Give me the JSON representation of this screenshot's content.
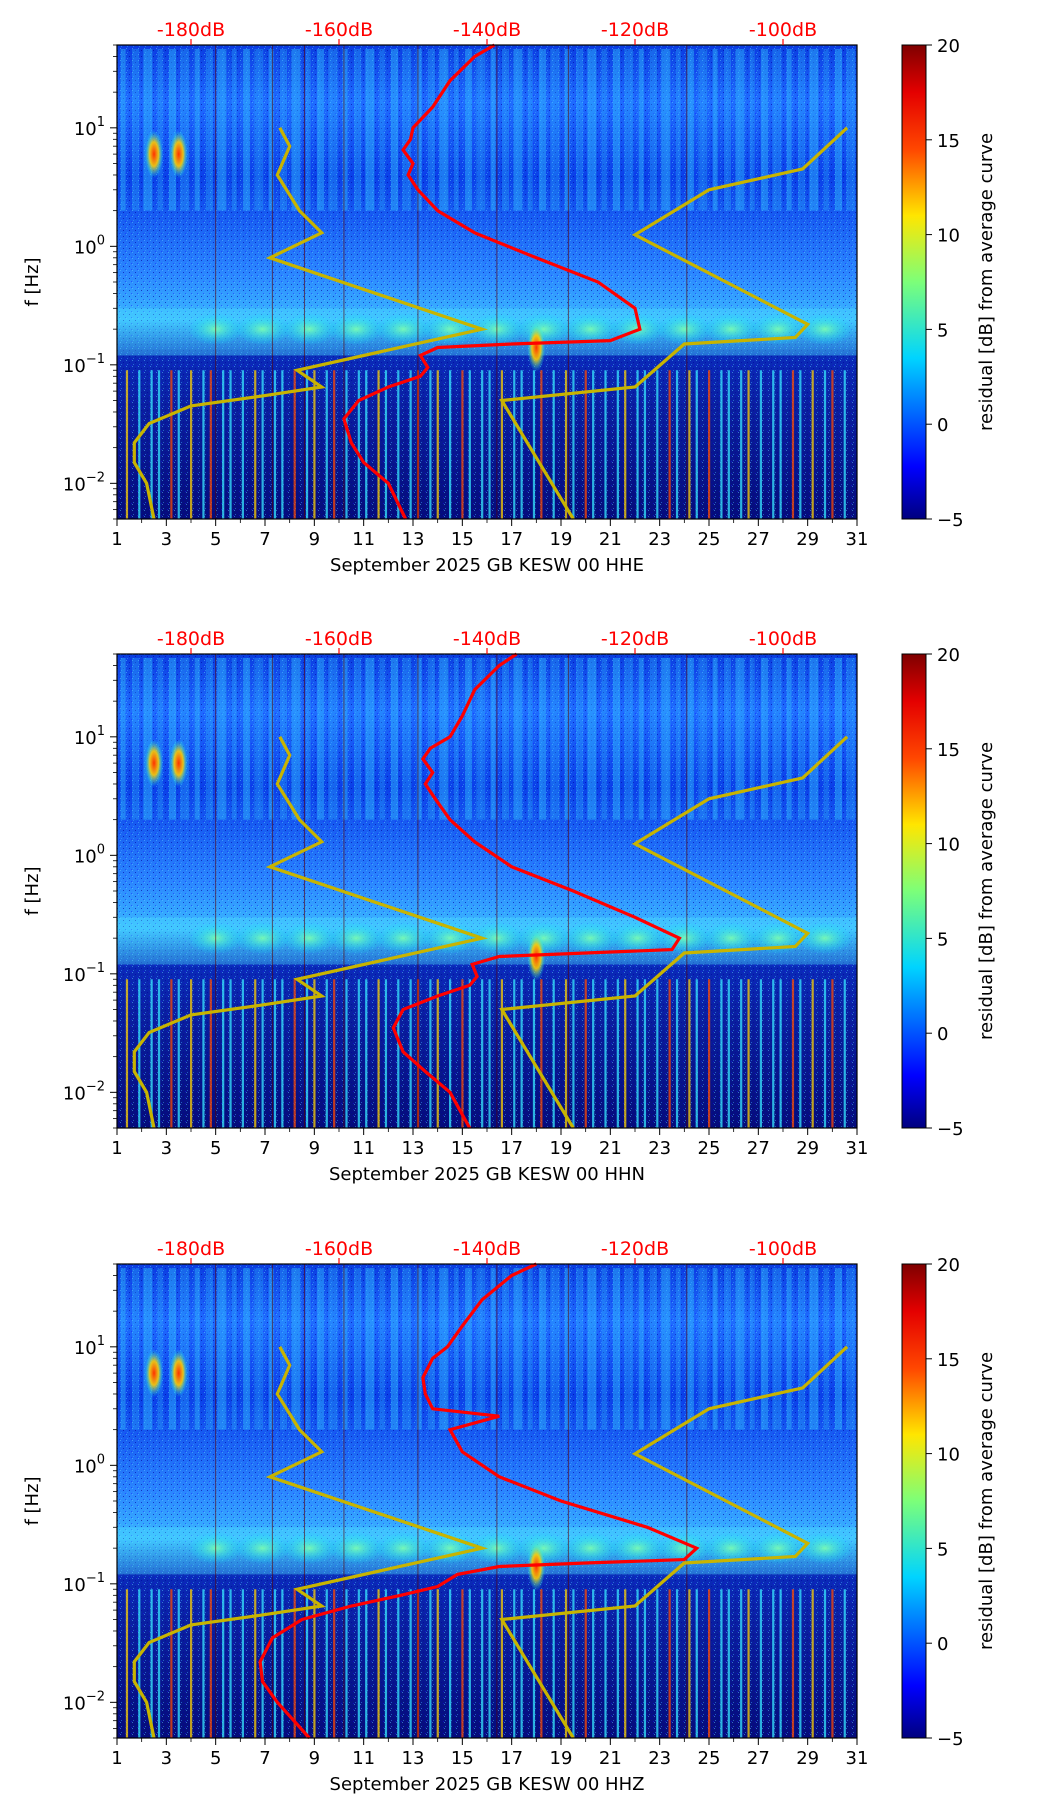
{
  "figure": {
    "colorbar": {
      "label": "residual [dB] from average curve",
      "ticks": [
        "20",
        "15",
        "10",
        "5",
        "0",
        "−5"
      ],
      "range": [
        -5,
        20
      ],
      "colormap": [
        "#00007f",
        "#0000ff",
        "#007fff",
        "#00ffff",
        "#7fff7f",
        "#ffff00",
        "#ff7f00",
        "#ff0000",
        "#7f0000"
      ]
    },
    "colors": {
      "rms_curve": "#ff0000",
      "noise_model": "#c8b400",
      "db_label": "#ff0000"
    }
  },
  "chart_data": [
    {
      "type": "heatmap",
      "title": "",
      "xlabel": "September 2025 GB KESW 00 HHE",
      "ylabel": "f [Hz]",
      "xlim": [
        1,
        31
      ],
      "ylim": [
        0.005,
        50
      ],
      "yscale": "log",
      "x_ticks": [
        "1",
        "3",
        "5",
        "7",
        "9",
        "11",
        "13",
        "15",
        "17",
        "19",
        "21",
        "23",
        "25",
        "27",
        "29",
        "31"
      ],
      "y_ticks": [
        {
          "value": 10,
          "base": "10",
          "exp": "1"
        },
        {
          "value": 1,
          "base": "10",
          "exp": "0"
        },
        {
          "value": 0.1,
          "base": "10",
          "exp": "−1"
        },
        {
          "value": 0.01,
          "base": "10",
          "exp": "−2"
        }
      ],
      "db_axis": {
        "labels": [
          "-180dB",
          "-160dB",
          "-140dB",
          "-120dB",
          "-100dB"
        ],
        "positions": [
          4.0,
          10.0,
          16.0,
          22.0,
          28.0
        ]
      },
      "noise_model_curve": {
        "x": [
          2.5,
          2.2,
          1.7,
          1.7,
          2.3,
          4.0,
          7.0,
          9.3,
          8.3,
          15.8,
          7.2,
          9.3,
          8.4,
          7.5,
          8.0,
          7.6
        ],
        "f": [
          0.005,
          0.01,
          0.015,
          0.022,
          0.032,
          0.045,
          0.055,
          0.065,
          0.09,
          0.2,
          0.8,
          1.3,
          2.0,
          4.0,
          7.0,
          10.0
        ]
      },
      "noise_model_curve_high": {
        "x": [
          19.5,
          16.6,
          22.0,
          24.0,
          28.5,
          29.0,
          22.0,
          25.0,
          28.8,
          30.6
        ],
        "f": [
          0.005,
          0.05,
          0.065,
          0.15,
          0.17,
          0.22,
          1.25,
          3.0,
          4.5,
          10.0
        ]
      },
      "rms_curve": {
        "x": [
          12.7,
          12.0,
          11.0,
          10.5,
          10.2,
          10.8,
          12.0,
          13.3,
          13.6,
          13.3,
          14.0,
          17.0,
          21.0,
          22.2,
          22.0,
          20.5,
          18.0,
          15.5,
          14.0,
          13.2,
          12.8,
          13.0,
          12.6,
          12.9,
          13.0,
          13.8,
          14.5,
          15.5,
          16.3
        ],
        "f": [
          0.005,
          0.01,
          0.015,
          0.022,
          0.035,
          0.05,
          0.065,
          0.08,
          0.095,
          0.12,
          0.14,
          0.15,
          0.16,
          0.2,
          0.3,
          0.5,
          0.8,
          1.3,
          2.0,
          3.0,
          4.0,
          5.0,
          6.5,
          8.0,
          10.0,
          15.0,
          25.0,
          40.0,
          50.0
        ]
      },
      "hot_spots": [
        {
          "day": 2.5,
          "f": 6.0
        },
        {
          "day": 3.5,
          "f": 6.0
        },
        {
          "day": 18.0,
          "f": 0.14
        }
      ]
    },
    {
      "type": "heatmap",
      "title": "",
      "xlabel": "September 2025 GB KESW 00 HHN",
      "ylabel": "f [Hz]",
      "xlim": [
        1,
        31
      ],
      "ylim": [
        0.005,
        50
      ],
      "yscale": "log",
      "x_ticks": [
        "1",
        "3",
        "5",
        "7",
        "9",
        "11",
        "13",
        "15",
        "17",
        "19",
        "21",
        "23",
        "25",
        "27",
        "29",
        "31"
      ],
      "y_ticks": [
        {
          "value": 10,
          "base": "10",
          "exp": "1"
        },
        {
          "value": 1,
          "base": "10",
          "exp": "0"
        },
        {
          "value": 0.1,
          "base": "10",
          "exp": "−1"
        },
        {
          "value": 0.01,
          "base": "10",
          "exp": "−2"
        }
      ],
      "db_axis": {
        "labels": [
          "-180dB",
          "-160dB",
          "-140dB",
          "-120dB",
          "-100dB"
        ],
        "positions": [
          4.0,
          10.0,
          16.0,
          22.0,
          28.0
        ]
      },
      "noise_model_curve": {
        "x": [
          2.5,
          2.2,
          1.7,
          1.7,
          2.3,
          4.0,
          7.0,
          9.3,
          8.3,
          15.8,
          7.2,
          9.3,
          8.4,
          7.5,
          8.0,
          7.6
        ],
        "f": [
          0.005,
          0.01,
          0.015,
          0.022,
          0.032,
          0.045,
          0.055,
          0.065,
          0.09,
          0.2,
          0.8,
          1.3,
          2.0,
          4.0,
          7.0,
          10.0
        ]
      },
      "noise_model_curve_high": {
        "x": [
          19.5,
          16.6,
          22.0,
          24.0,
          28.5,
          29.0,
          22.0,
          25.0,
          28.8,
          30.6
        ],
        "f": [
          0.005,
          0.05,
          0.065,
          0.15,
          0.17,
          0.22,
          1.25,
          3.0,
          4.5,
          10.0
        ]
      },
      "rms_curve": {
        "x": [
          15.3,
          14.5,
          13.5,
          12.6,
          12.2,
          12.6,
          14.0,
          15.3,
          15.6,
          15.4,
          16.5,
          20.0,
          23.5,
          23.8,
          22.0,
          19.5,
          17.0,
          15.5,
          14.5,
          13.9,
          13.5,
          13.8,
          13.4,
          13.7,
          14.5,
          15.0,
          15.5,
          16.5,
          17.2
        ],
        "f": [
          0.005,
          0.01,
          0.015,
          0.022,
          0.035,
          0.05,
          0.065,
          0.08,
          0.095,
          0.12,
          0.14,
          0.15,
          0.16,
          0.2,
          0.3,
          0.5,
          0.8,
          1.3,
          2.0,
          3.0,
          4.0,
          5.0,
          6.5,
          8.0,
          10.0,
          15.0,
          25.0,
          40.0,
          50.0
        ]
      },
      "hot_spots": [
        {
          "day": 2.5,
          "f": 6.0
        },
        {
          "day": 3.5,
          "f": 6.0
        },
        {
          "day": 18.0,
          "f": 0.14
        }
      ]
    },
    {
      "type": "heatmap",
      "title": "",
      "xlabel": "September 2025 GB KESW 00 HHZ",
      "ylabel": "f [Hz]",
      "xlim": [
        1,
        31
      ],
      "ylim": [
        0.005,
        50
      ],
      "yscale": "log",
      "x_ticks": [
        "1",
        "3",
        "5",
        "7",
        "9",
        "11",
        "13",
        "15",
        "17",
        "19",
        "21",
        "23",
        "25",
        "27",
        "29",
        "31"
      ],
      "y_ticks": [
        {
          "value": 10,
          "base": "10",
          "exp": "1"
        },
        {
          "value": 1,
          "base": "10",
          "exp": "0"
        },
        {
          "value": 0.1,
          "base": "10",
          "exp": "−1"
        },
        {
          "value": 0.01,
          "base": "10",
          "exp": "−2"
        }
      ],
      "db_axis": {
        "labels": [
          "-180dB",
          "-160dB",
          "-140dB",
          "-120dB",
          "-100dB"
        ],
        "positions": [
          4.0,
          10.0,
          16.0,
          22.0,
          28.0
        ]
      },
      "noise_model_curve": {
        "x": [
          2.5,
          2.2,
          1.7,
          1.7,
          2.3,
          4.0,
          7.0,
          9.3,
          8.3,
          15.8,
          7.2,
          9.3,
          8.4,
          7.5,
          8.0,
          7.6
        ],
        "f": [
          0.005,
          0.01,
          0.015,
          0.022,
          0.032,
          0.045,
          0.055,
          0.065,
          0.09,
          0.2,
          0.8,
          1.3,
          2.0,
          4.0,
          7.0,
          10.0
        ]
      },
      "noise_model_curve_high": {
        "x": [
          19.5,
          16.6,
          22.0,
          24.0,
          28.5,
          29.0,
          22.0,
          25.0,
          28.8,
          30.6
        ],
        "f": [
          0.005,
          0.05,
          0.065,
          0.15,
          0.17,
          0.22,
          1.25,
          3.0,
          4.5,
          10.0
        ]
      },
      "rms_curve": {
        "x": [
          8.8,
          7.5,
          6.9,
          6.8,
          7.3,
          8.5,
          10.5,
          12.5,
          14.0,
          14.8,
          16.5,
          20.0,
          24.0,
          24.5,
          22.5,
          19.0,
          16.5,
          15.0,
          14.5,
          16.5,
          13.8,
          13.5,
          13.4,
          13.8,
          14.4,
          15.0,
          15.8,
          17.0,
          18.0
        ],
        "f": [
          0.005,
          0.01,
          0.015,
          0.022,
          0.035,
          0.05,
          0.065,
          0.08,
          0.095,
          0.12,
          0.14,
          0.15,
          0.16,
          0.2,
          0.3,
          0.5,
          0.8,
          1.3,
          2.0,
          2.6,
          3.0,
          4.0,
          5.5,
          8.0,
          10.0,
          15.0,
          25.0,
          40.0,
          50.0
        ]
      },
      "hot_spots": [
        {
          "day": 2.5,
          "f": 6.0
        },
        {
          "day": 3.5,
          "f": 6.0
        },
        {
          "day": 18.0,
          "f": 0.14
        }
      ]
    }
  ]
}
